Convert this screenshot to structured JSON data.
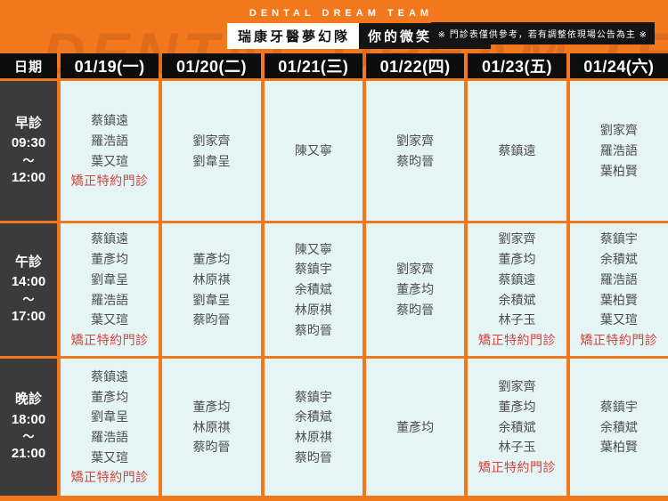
{
  "header": {
    "team_label": "DENTAL DREAM TEAM",
    "title_primary": "瑞康牙醫夢幻隊",
    "title_secondary": "你的微笑神助攻",
    "disclaimer": "※ 門診表僅供參考，若有調整依現場公告為主 ※",
    "watermark": "DENTAL DREAM TEAM"
  },
  "colors": {
    "background_orange": "#F2771D",
    "header_black": "#0D0D0D",
    "time_column_gray": "#3B3B3B",
    "cell_background": "#E5F5F6",
    "name_text": "#4D4D4D",
    "special_red": "#D4433C"
  },
  "table": {
    "corner_label": "日期",
    "columns": [
      "01/19(一)",
      "01/20(二)",
      "01/21(三)",
      "01/22(四)",
      "01/23(五)",
      "01/24(六)"
    ],
    "rows": [
      {
        "session": "早診",
        "start": "09:30",
        "tilde": "～",
        "end": "12:00",
        "cells": [
          {
            "names": [
              "蔡鎮遠",
              "羅浩語",
              "葉又瑄"
            ],
            "special": "矯正特約門診"
          },
          {
            "names": [
              "劉家齊",
              "劉韋呈"
            ],
            "special": ""
          },
          {
            "names": [
              "陳又寧"
            ],
            "special": ""
          },
          {
            "names": [
              "劉家齊",
              "蔡昀晉"
            ],
            "special": ""
          },
          {
            "names": [
              "蔡鎮遠"
            ],
            "special": ""
          },
          {
            "names": [
              "劉家齊",
              "羅浩語",
              "葉柏賢"
            ],
            "special": ""
          }
        ]
      },
      {
        "session": "午診",
        "start": "14:00",
        "tilde": "～",
        "end": "17:00",
        "cells": [
          {
            "names": [
              "蔡鎮遠",
              "董彥均",
              "劉韋呈",
              "羅浩語",
              "葉又瑄"
            ],
            "special": "矯正特約門診"
          },
          {
            "names": [
              "董彥均",
              "林原祺",
              "劉韋呈",
              "蔡昀晉"
            ],
            "special": ""
          },
          {
            "names": [
              "陳又寧",
              "蔡鎮宇",
              "余積斌",
              "林原祺",
              "蔡昀晉"
            ],
            "special": ""
          },
          {
            "names": [
              "劉家齊",
              "董彥均",
              "蔡昀晉"
            ],
            "special": ""
          },
          {
            "names": [
              "劉家齊",
              "董彥均",
              "蔡鎮遠",
              "余積斌",
              "林子玉"
            ],
            "special": "矯正特約門診"
          },
          {
            "names": [
              "蔡鎮宇",
              "余積斌",
              "羅浩語",
              "葉柏賢",
              "葉又瑄"
            ],
            "special": "矯正特約門診"
          }
        ]
      },
      {
        "session": "晚診",
        "start": "18:00",
        "tilde": "～",
        "end": "21:00",
        "cells": [
          {
            "names": [
              "蔡鎮遠",
              "董彥均",
              "劉韋呈",
              "羅浩語",
              "葉又瑄"
            ],
            "special": "矯正特約門診"
          },
          {
            "names": [
              "董彥均",
              "林原祺",
              "蔡昀晉"
            ],
            "special": ""
          },
          {
            "names": [
              "蔡鎮宇",
              "余積斌",
              "林原祺",
              "蔡昀晉"
            ],
            "special": ""
          },
          {
            "names": [
              "董彥均"
            ],
            "special": ""
          },
          {
            "names": [
              "劉家齊",
              "董彥均",
              "余積斌",
              "林子玉"
            ],
            "special": "矯正特約門診"
          },
          {
            "names": [
              "蔡鎮宇",
              "余積斌",
              "葉柏賢"
            ],
            "special": ""
          }
        ]
      }
    ]
  }
}
